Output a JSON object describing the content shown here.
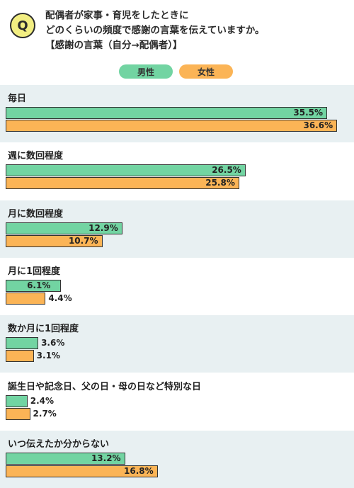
{
  "question": {
    "badge": "Q",
    "lines": [
      "配偶者が家事・育児をしたときに",
      "どのくらいの頻度で感謝の言葉を伝えていますか。",
      "【感謝の言葉（自分→配偶者）】"
    ]
  },
  "colors": {
    "male": "#72d4a2",
    "female": "#fbb456",
    "band_shaded": "#e8f0f2",
    "band_plain": "#ffffff",
    "badge": "#f2ee82"
  },
  "chart_data": {
    "type": "bar",
    "orientation": "horizontal",
    "unit": "%",
    "xlim": [
      0,
      40
    ],
    "legend_position": "top-center",
    "categories": [
      "毎日",
      "週に数回程度",
      "月に数回程度",
      "月に1回程度",
      "数か月に1回程度",
      "誕生日や記念日、父の日・母の日など特別な日",
      "いつ伝えたか分からない"
    ],
    "series": [
      {
        "name": "男性",
        "values": [
          35.5,
          26.5,
          12.9,
          6.1,
          3.6,
          2.4,
          13.2
        ]
      },
      {
        "name": "女性",
        "values": [
          36.6,
          25.8,
          10.7,
          4.4,
          3.1,
          2.7,
          16.8
        ]
      }
    ]
  }
}
